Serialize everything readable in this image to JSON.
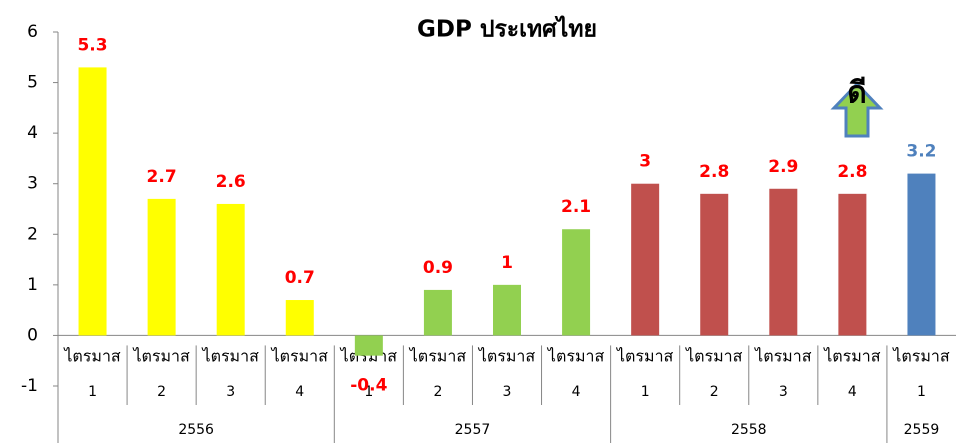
{
  "chart_data": {
    "type": "bar",
    "title": "GDP ประเทศไทย",
    "groups": [
      {
        "name": "2556",
        "color": "#ffff00",
        "label_color": "#ff0000",
        "quarters": [
          [
            "ไตรมาส",
            "1"
          ],
          [
            "ไตรมาส",
            "2"
          ],
          [
            "ไตรมาส",
            "3"
          ],
          [
            "ไตรมาส",
            "4"
          ]
        ],
        "values": [
          5.3,
          2.7,
          2.6,
          0.7
        ]
      },
      {
        "name": "2557",
        "color": "#92d050",
        "label_color": "#ff0000",
        "quarters": [
          [
            "ไตรมาส",
            "1"
          ],
          [
            "ไตรมาส",
            "2"
          ],
          [
            "ไตรมาส",
            "3"
          ],
          [
            "ไตรมาส",
            "4"
          ]
        ],
        "values": [
          -0.4,
          0.9,
          1,
          2.1
        ]
      },
      {
        "name": "2558",
        "color": "#c0504d",
        "label_color": "#ff0000",
        "quarters": [
          [
            "ไตรมาส",
            "1"
          ],
          [
            "ไตรมาส",
            "2"
          ],
          [
            "ไตรมาส",
            "3"
          ],
          [
            "ไตรมาส",
            "4"
          ]
        ],
        "values": [
          3,
          2.8,
          2.9,
          2.8
        ]
      },
      {
        "name": "2559",
        "color": "#4f81bd",
        "label_color": "#4f81bd",
        "quarters": [
          [
            "ไตรมาส",
            "1"
          ]
        ],
        "values": [
          3.2
        ]
      }
    ],
    "annotation": "ดี",
    "ylim": [
      -1,
      6
    ],
    "yticks": [
      -1,
      0,
      1,
      2,
      3,
      4,
      5,
      6
    ],
    "grid": false
  }
}
